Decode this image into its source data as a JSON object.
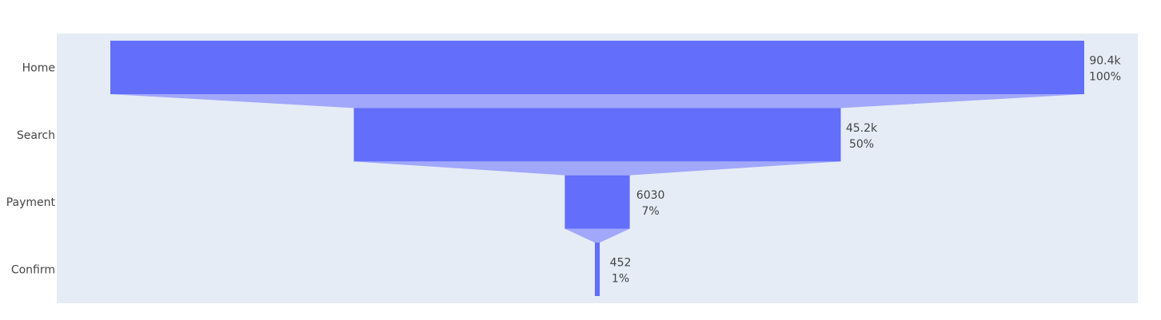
{
  "chart_data": {
    "type": "funnel",
    "categories": [
      "Home",
      "Search",
      "Payment",
      "Confirm"
    ],
    "values": [
      90400,
      45200,
      6030,
      452
    ],
    "value_labels": [
      "90.4k",
      "45.2k",
      "6030",
      "452"
    ],
    "percent_labels": [
      "100%",
      "50%",
      "7%",
      "1%"
    ],
    "colors": {
      "plot_background": "#e5ecf6",
      "bar": "#636efa",
      "connector": "#a1a7fa",
      "text": "#444444"
    }
  }
}
